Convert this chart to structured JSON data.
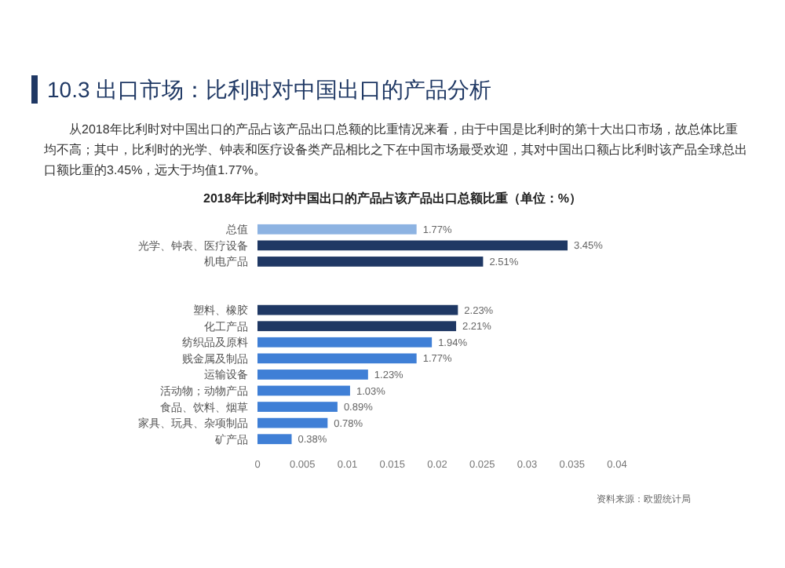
{
  "chart_data": {
    "type": "bar",
    "orientation": "horizontal",
    "title": "10.3 出口市场：比利时对中国出口的产品分析",
    "subtitle": "2018年比利时对中国出口的产品占该产品出口总额比重（单位：%）",
    "annotations": [
      "从2018年比利时对中国出口的产品占该产品出口总额的比重情况来看，由于中国是比利时的第十大出口市场，故总体比重均不高；其中，比利时的光学、钟表和医疗设备类产品相比之下在中国市场最受欢迎，其对中国出口额占比利时该产品全球总出口额比重的3.45%，远大于均值1.77%。",
      "资料来源：欧盟统计局"
    ],
    "categories": [
      "总值",
      "光学、钟表、医疗设备",
      "机电产品",
      null,
      null,
      "塑料、橡胶",
      "化工产品",
      "纺织品及原料",
      "贱金属及制品",
      "运输设备",
      "活动物；动物产品",
      "食品、饮料、烟草",
      "家具、玩具、杂项制品",
      "矿产品"
    ],
    "values": [
      0.0177,
      0.0345,
      0.0251,
      null,
      null,
      0.0223,
      0.0221,
      0.0194,
      0.0177,
      0.0123,
      0.0103,
      0.0089,
      0.0078,
      0.0038
    ],
    "value_labels": [
      "1.77%",
      "3.45%",
      "2.51%",
      null,
      null,
      "2.23%",
      "2.21%",
      "1.94%",
      "1.77%",
      "1.23%",
      "1.03%",
      "0.89%",
      "0.78%",
      "0.38%"
    ],
    "colors": [
      "#8db3e2",
      "#1f3864",
      "#1f3864",
      null,
      null,
      "#1f3864",
      "#1f3864",
      "#3f7fd6",
      "#3f7fd6",
      "#3f7fd6",
      "#3f7fd6",
      "#3f7fd6",
      "#3f7fd6",
      "#3f7fd6"
    ],
    "xlim": [
      0,
      0.04
    ],
    "xticks": [
      0,
      0.005,
      0.01,
      0.015,
      0.02,
      0.025,
      0.03,
      0.035,
      0.04
    ]
  }
}
